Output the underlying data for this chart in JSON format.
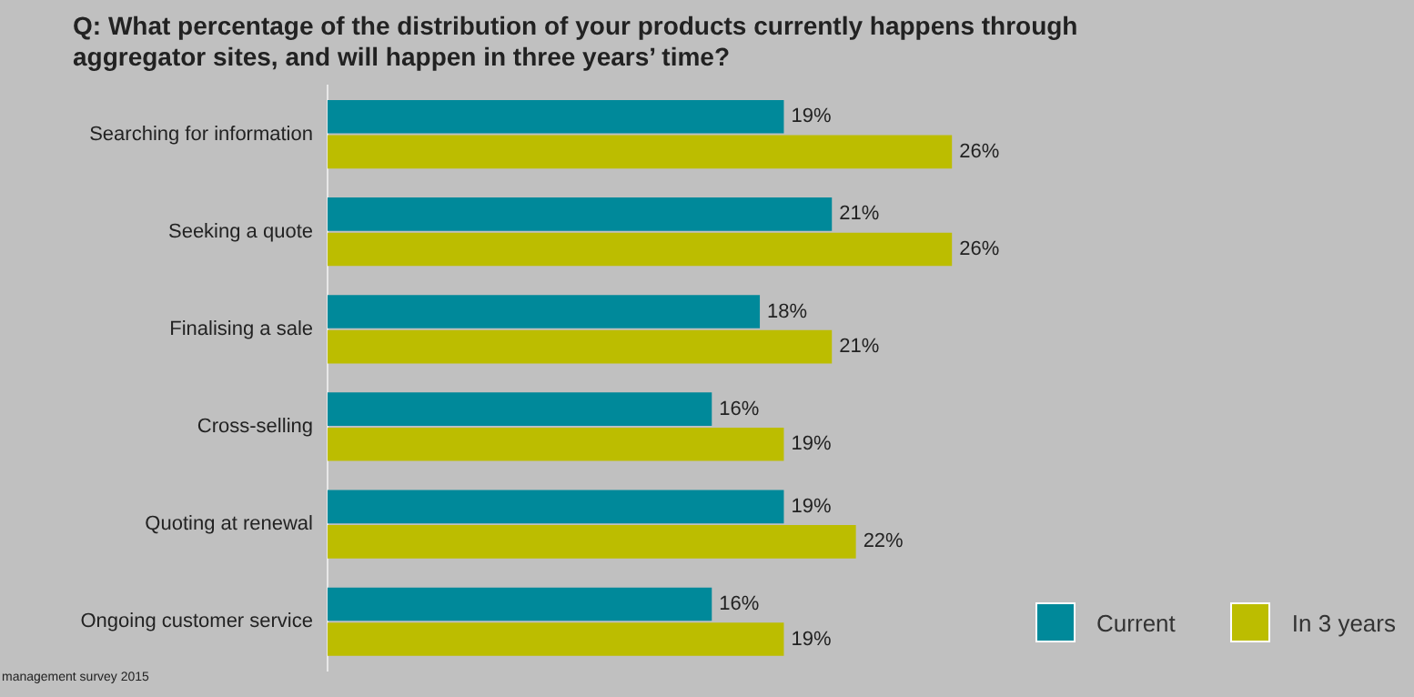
{
  "chart_data": {
    "type": "bar",
    "orientation": "horizontal",
    "title": "Q: What percentage of the distribution of your products currently happens through aggregator sites, and will happen in three years’ time?",
    "categories": [
      "Searching for information",
      "Seeking a quote",
      "Finalising a sale",
      "Cross-selling",
      "Quoting at renewal",
      "Ongoing customer service"
    ],
    "series": [
      {
        "name": "Current",
        "color": "#00899a",
        "values": [
          19,
          21,
          18,
          16,
          19,
          16
        ],
        "value_labels": [
          "19%",
          "21%",
          "18%",
          "16%",
          "19%",
          "16%"
        ]
      },
      {
        "name": "In 3 years",
        "color": "#bcbd00",
        "values": [
          26,
          26,
          21,
          19,
          22,
          19
        ],
        "value_labels": [
          "26%",
          "26%",
          "21%",
          "19%",
          "22%",
          "19%"
        ]
      }
    ],
    "legend": "bottom right",
    "annotations": [
      "management survey 2015"
    ]
  }
}
